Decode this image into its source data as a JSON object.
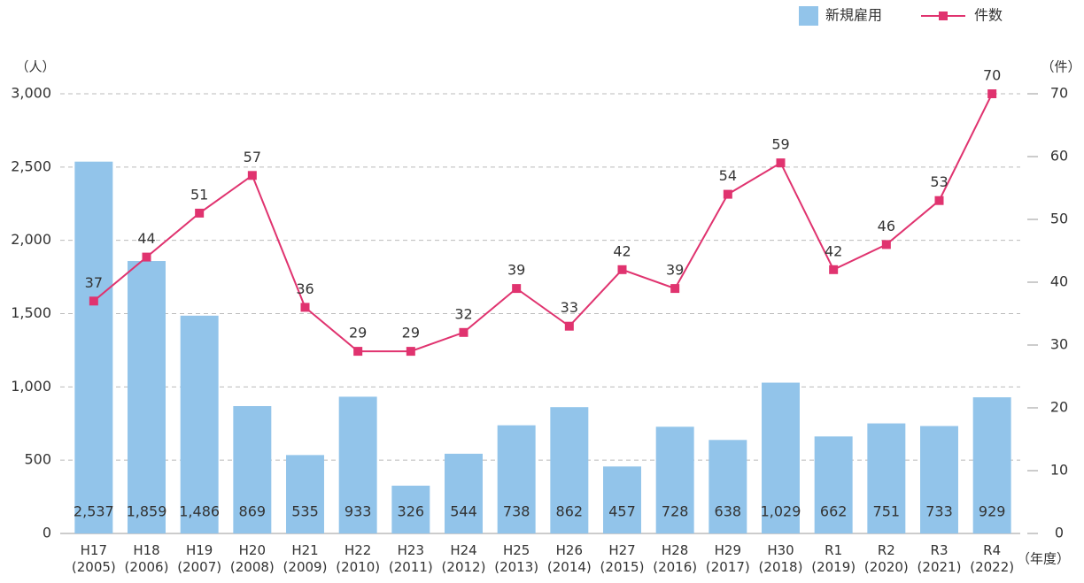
{
  "chart_data": {
    "type": "bar_line",
    "categories": [
      "H17\n(2005)",
      "H18\n(2006)",
      "H19\n(2007)",
      "H20\n(2008)",
      "H21\n(2009)",
      "H22\n(2010)",
      "H23\n(2011)",
      "H24\n(2012)",
      "H25\n(2013)",
      "H26\n(2014)",
      "H27\n(2015)",
      "H28\n(2016)",
      "H29\n(2017)",
      "H30\n(2018)",
      "R1\n(2019)",
      "R2\n(2020)",
      "R3\n(2021)",
      "R4\n(2022)"
    ],
    "y_label": "（人）",
    "y2_label": "（件）",
    "x_label": "（年度）",
    "series": [
      {
        "name": "新規雇用",
        "color": "#92c4ea",
        "type": "bar",
        "values": [
          2537,
          1859,
          1486,
          869,
          535,
          933,
          326,
          544,
          738,
          862,
          457,
          728,
          638,
          1029,
          662,
          751,
          733,
          929
        ],
        "value_labels": [
          "2,537",
          "1,859",
          "1,486",
          "869",
          "535",
          "933",
          "326",
          "544",
          "738",
          "862",
          "457",
          "728",
          "638",
          "1,029",
          "662",
          "751",
          "733",
          "929"
        ]
      },
      {
        "name": "件数",
        "color": "#e0336f",
        "type": "line",
        "axis": "y2",
        "values": [
          37,
          44,
          51,
          57,
          36,
          29,
          29,
          32,
          39,
          33,
          42,
          39,
          54,
          59,
          42,
          46,
          53,
          70
        ]
      }
    ],
    "ylim": [
      0,
      3000
    ],
    "yticks": [
      0,
      500,
      {
        "value": 1000,
        "label": "1,000"
      },
      {
        "value": 1500,
        "label": "1,500"
      },
      {
        "value": 2000,
        "label": "2,000"
      },
      {
        "value": 2500,
        "label": "2,500"
      },
      {
        "value": 3000,
        "label": "3,000"
      }
    ],
    "y2lim": [
      0,
      70
    ],
    "y2ticks": [
      0,
      10,
      20,
      30,
      40,
      50,
      60,
      70
    ],
    "grid": true,
    "legend": "top-right"
  }
}
